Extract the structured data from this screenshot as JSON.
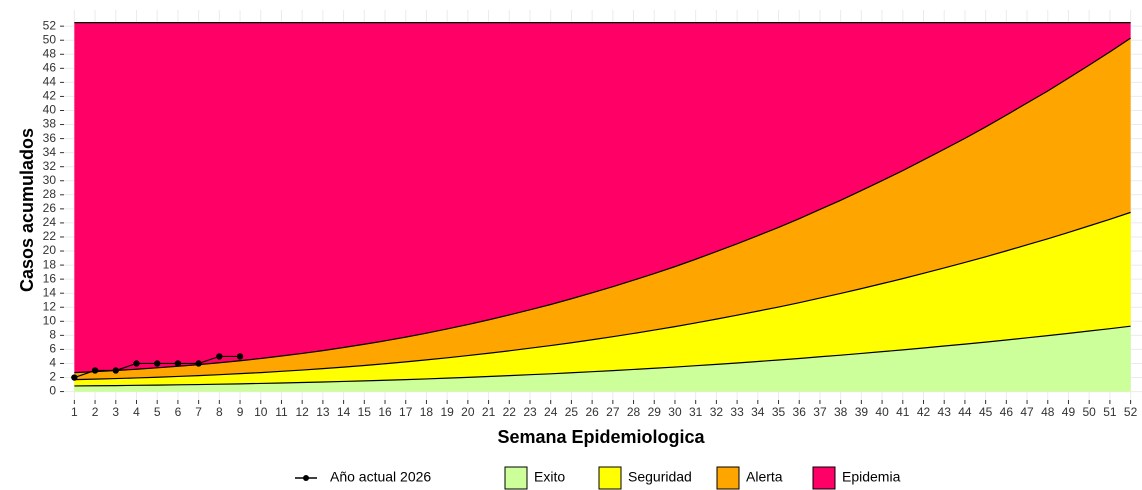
{
  "chart_data": {
    "type": "area",
    "x_label": "Semana Epidemiologica",
    "y_label": "Casos acumulados",
    "x": [
      1,
      2,
      3,
      4,
      5,
      6,
      7,
      8,
      9,
      10,
      11,
      12,
      13,
      14,
      15,
      16,
      17,
      18,
      19,
      20,
      21,
      22,
      23,
      24,
      25,
      26,
      27,
      28,
      29,
      30,
      31,
      32,
      33,
      34,
      35,
      36,
      37,
      38,
      39,
      40,
      41,
      42,
      43,
      44,
      45,
      46,
      47,
      48,
      49,
      50,
      51,
      52
    ],
    "xlim": [
      0.5,
      52.55
    ],
    "xticks": [
      1,
      2,
      3,
      4,
      5,
      6,
      7,
      8,
      9,
      10,
      11,
      12,
      13,
      14,
      15,
      16,
      17,
      18,
      19,
      20,
      21,
      22,
      23,
      24,
      25,
      26,
      27,
      28,
      29,
      30,
      31,
      32,
      33,
      34,
      35,
      36,
      37,
      38,
      39,
      40,
      41,
      42,
      43,
      44,
      45,
      46,
      47,
      48,
      49,
      50,
      51,
      52
    ],
    "ylim": [
      -1.2,
      54.3
    ],
    "yticks": [
      0,
      2,
      4,
      6,
      8,
      10,
      12,
      14,
      16,
      18,
      20,
      22,
      24,
      26,
      28,
      30,
      32,
      34,
      36,
      38,
      40,
      42,
      44,
      46,
      48,
      50,
      52
    ],
    "grid": true,
    "series": [
      {
        "name": "Exito",
        "color": "#ccff99",
        "values": [
          0.8,
          0.83,
          0.85,
          0.89,
          0.92,
          0.96,
          1.0,
          1.05,
          1.1,
          1.16,
          1.22,
          1.29,
          1.36,
          1.44,
          1.52,
          1.61,
          1.7,
          1.8,
          1.91,
          2.02,
          2.14,
          2.27,
          2.4,
          2.53,
          2.68,
          2.83,
          2.98,
          3.15,
          3.32,
          3.49,
          3.68,
          3.87,
          4.07,
          4.28,
          4.49,
          4.71,
          4.95,
          5.18,
          5.43,
          5.68,
          5.93,
          6.2,
          6.48,
          6.75,
          7.04,
          7.34,
          7.65,
          7.96,
          8.28,
          8.62,
          8.95,
          9.3
        ]
      },
      {
        "name": "Seguridad",
        "color": "#ffff00",
        "values": [
          1.7,
          1.77,
          1.85,
          1.94,
          2.04,
          2.15,
          2.27,
          2.4,
          2.55,
          2.7,
          2.88,
          3.06,
          3.27,
          3.48,
          3.71,
          3.96,
          4.23,
          4.51,
          4.8,
          5.12,
          5.45,
          5.8,
          6.17,
          6.55,
          6.95,
          7.37,
          7.81,
          8.27,
          8.75,
          9.24,
          9.77,
          10.31,
          10.87,
          11.45,
          12.03,
          12.65,
          13.31,
          13.96,
          14.65,
          15.36,
          16.07,
          16.83,
          17.59,
          18.37,
          19.18,
          20.02,
          20.88,
          21.74,
          22.65,
          23.58,
          24.52,
          25.5
        ]
      },
      {
        "name": "Alerta",
        "color": "#ffa500",
        "values": [
          2.7,
          2.84,
          3.0,
          3.18,
          3.38,
          3.6,
          3.83,
          4.1,
          4.39,
          4.71,
          5.06,
          5.43,
          5.83,
          6.27,
          6.73,
          7.22,
          7.75,
          8.31,
          8.91,
          9.53,
          10.2,
          10.9,
          11.63,
          12.39,
          13.21,
          14.05,
          14.93,
          15.85,
          16.8,
          17.78,
          18.83,
          19.92,
          21.03,
          22.19,
          23.36,
          24.6,
          25.92,
          27.22,
          28.6,
          30.01,
          31.44,
          32.96,
          34.48,
          36.03,
          37.66,
          39.34,
          41.07,
          42.77,
          44.6,
          46.46,
          48.34,
          50.3
        ]
      },
      {
        "name": "Epidemia",
        "color": "#ff0066",
        "values": [
          52.5,
          52.5,
          52.5,
          52.5,
          52.5,
          52.5,
          52.5,
          52.5,
          52.5,
          52.5,
          52.5,
          52.5,
          52.5,
          52.5,
          52.5,
          52.5,
          52.5,
          52.5,
          52.5,
          52.5,
          52.5,
          52.5,
          52.5,
          52.5,
          52.5,
          52.5,
          52.5,
          52.5,
          52.5,
          52.5,
          52.5,
          52.5,
          52.5,
          52.5,
          52.5,
          52.5,
          52.5,
          52.5,
          52.5,
          52.5,
          52.5,
          52.5,
          52.5,
          52.5,
          52.5,
          52.5,
          52.5,
          52.5,
          52.5,
          52.5,
          52.5,
          52.5
        ]
      }
    ],
    "current": {
      "name": "Año actual 2026",
      "color": "#000000",
      "x": [
        1,
        2,
        3,
        4,
        5,
        6,
        7,
        8,
        9
      ],
      "values": [
        2,
        3,
        3,
        4,
        4,
        4,
        4,
        5,
        5
      ]
    }
  }
}
